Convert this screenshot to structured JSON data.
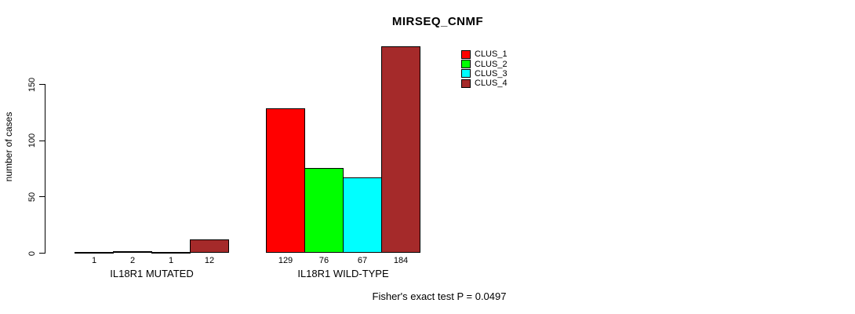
{
  "chart_data": {
    "type": "bar",
    "title": "MIRSEQ_CNMF",
    "xlabel": "",
    "ylabel": "number of cases",
    "categories": [
      "IL18R1 MUTATED",
      "IL18R1 WILD-TYPE"
    ],
    "series": [
      {
        "name": "CLUS_1",
        "color": "#ff0000",
        "values": [
          1,
          129
        ]
      },
      {
        "name": "CLUS_2",
        "color": "#00ff00",
        "values": [
          2,
          76
        ]
      },
      {
        "name": "CLUS_3",
        "color": "#00ffff",
        "values": [
          1,
          67
        ]
      },
      {
        "name": "CLUS_4",
        "color": "#a52a2a",
        "values": [
          12,
          184
        ]
      }
    ],
    "bar_value_labels": [
      [
        "1",
        "2",
        "1",
        "12"
      ],
      [
        "129",
        "76",
        "67",
        "184"
      ]
    ],
    "yticks": [
      0,
      50,
      100,
      150
    ],
    "ylim": [
      0,
      184
    ],
    "grid": false,
    "legend_position": "top-right",
    "legend": [
      {
        "label": "CLUS_1",
        "color": "#ff0000"
      },
      {
        "label": "CLUS_2",
        "color": "#00ff00"
      },
      {
        "label": "CLUS_3",
        "color": "#00ffff"
      },
      {
        "label": "CLUS_4",
        "color": "#a52a2a"
      }
    ],
    "annotation": "Fisher's exact test P = 0.0497"
  }
}
